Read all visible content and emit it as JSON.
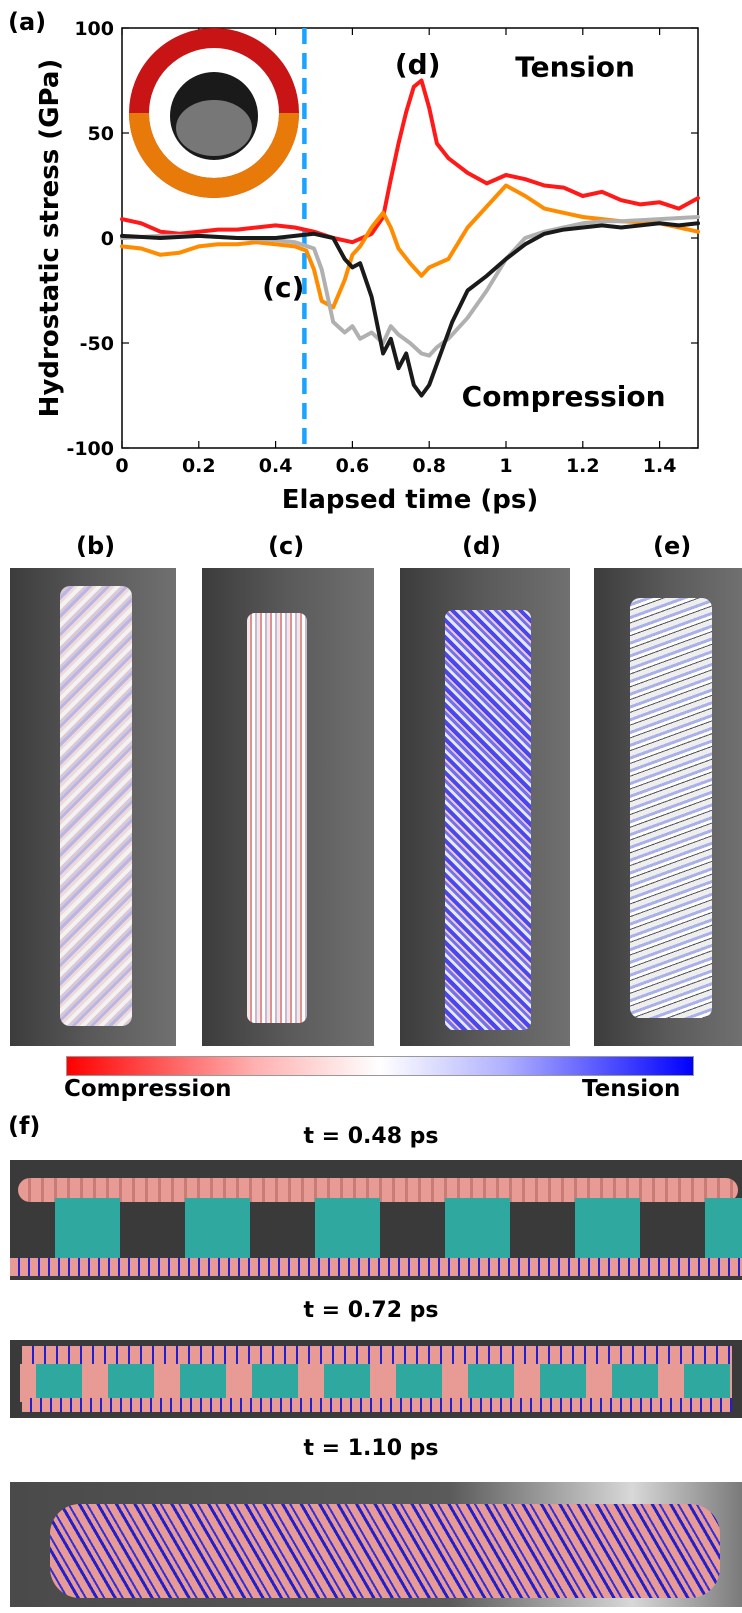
{
  "panel_labels": {
    "a": "(a)",
    "b": "(b)",
    "c": "(c)",
    "d": "(d)",
    "e": "(e)",
    "f": "(f)"
  },
  "chart_data": {
    "type": "line",
    "title": "",
    "xlabel": "Elapsed time (ps)",
    "ylabel": "Hydrostatic stress (GPa)",
    "xlim": [
      0,
      1.5
    ],
    "ylim": [
      -100,
      100
    ],
    "xticks": [
      0,
      0.2,
      0.4,
      0.6,
      0.8,
      1,
      1.2,
      1.4
    ],
    "xtick_labels": [
      "0",
      "0.2",
      "0.4",
      "0.6",
      "0.8",
      "1",
      "1.2",
      "1.4"
    ],
    "yticks": [
      -100,
      -50,
      0,
      50,
      100
    ],
    "ytick_labels": [
      "-100",
      "-50",
      "0",
      "50",
      "100"
    ],
    "grid": false,
    "vline": {
      "x": 0.475,
      "color": "#1aa3ff",
      "style": "dashed"
    },
    "annotations": [
      {
        "text": "(d)",
        "x": 0.77,
        "y": 78
      },
      {
        "text": "Tension",
        "x": 1.18,
        "y": 77
      },
      {
        "text": "(c)",
        "x": 0.42,
        "y": -28
      },
      {
        "text": "Compression",
        "x": 1.15,
        "y": -80
      }
    ],
    "series": [
      {
        "color": "#ff1a1a",
        "x": [
          0,
          0.05,
          0.1,
          0.15,
          0.2,
          0.25,
          0.3,
          0.35,
          0.4,
          0.45,
          0.5,
          0.55,
          0.6,
          0.65,
          0.68,
          0.7,
          0.72,
          0.74,
          0.76,
          0.78,
          0.8,
          0.82,
          0.85,
          0.9,
          0.95,
          1.0,
          1.05,
          1.1,
          1.15,
          1.2,
          1.25,
          1.3,
          1.35,
          1.4,
          1.45,
          1.5
        ],
        "y": [
          9,
          7,
          3,
          2,
          3,
          4,
          4,
          5,
          6,
          5,
          3,
          0,
          -2,
          2,
          10,
          28,
          45,
          60,
          72,
          75,
          62,
          45,
          38,
          31,
          26,
          30,
          28,
          25,
          24,
          20,
          22,
          18,
          16,
          17,
          14,
          19
        ]
      },
      {
        "color": "#ff8c00",
        "x": [
          0,
          0.05,
          0.1,
          0.15,
          0.2,
          0.25,
          0.3,
          0.35,
          0.4,
          0.45,
          0.48,
          0.5,
          0.52,
          0.55,
          0.58,
          0.6,
          0.62,
          0.65,
          0.68,
          0.7,
          0.72,
          0.75,
          0.78,
          0.8,
          0.85,
          0.9,
          0.95,
          1.0,
          1.05,
          1.1,
          1.15,
          1.2,
          1.3,
          1.4,
          1.5
        ],
        "y": [
          -4,
          -5,
          -8,
          -7,
          -4,
          -3,
          -3,
          -2,
          -3,
          -4,
          -6,
          -15,
          -30,
          -33,
          -20,
          -8,
          -4,
          5,
          12,
          5,
          -5,
          -12,
          -18,
          -14,
          -10,
          5,
          15,
          25,
          20,
          14,
          12,
          10,
          8,
          7,
          3
        ]
      },
      {
        "color": "#b0b0b0",
        "x": [
          0,
          0.1,
          0.2,
          0.3,
          0.4,
          0.45,
          0.5,
          0.52,
          0.55,
          0.58,
          0.6,
          0.62,
          0.65,
          0.68,
          0.7,
          0.72,
          0.75,
          0.78,
          0.8,
          0.82,
          0.85,
          0.9,
          0.95,
          1.0,
          1.05,
          1.1,
          1.15,
          1.2,
          1.25,
          1.3,
          1.4,
          1.5
        ],
        "y": [
          0,
          1,
          1,
          0,
          -1,
          -2,
          -5,
          -15,
          -40,
          -45,
          -42,
          -48,
          -45,
          -50,
          -42,
          -46,
          -50,
          -55,
          -56,
          -52,
          -48,
          -38,
          -25,
          -10,
          0,
          3,
          5,
          7,
          8,
          8,
          9,
          10
        ]
      },
      {
        "color": "#1a1a1a",
        "x": [
          0,
          0.1,
          0.2,
          0.3,
          0.4,
          0.45,
          0.5,
          0.55,
          0.58,
          0.6,
          0.62,
          0.65,
          0.68,
          0.7,
          0.72,
          0.74,
          0.76,
          0.78,
          0.8,
          0.83,
          0.86,
          0.9,
          0.95,
          1.0,
          1.05,
          1.1,
          1.15,
          1.2,
          1.25,
          1.3,
          1.35,
          1.4,
          1.45,
          1.5
        ],
        "y": [
          1,
          0,
          1,
          0,
          0,
          1,
          2,
          0,
          -10,
          -14,
          -12,
          -28,
          -55,
          -48,
          -62,
          -55,
          -70,
          -75,
          -70,
          -55,
          -40,
          -25,
          -18,
          -10,
          -3,
          2,
          4,
          5,
          6,
          5,
          6,
          7,
          6,
          7
        ]
      }
    ]
  },
  "colorbar": {
    "left_label": "Compression",
    "right_label": "Tension"
  },
  "time_labels": [
    "t = 0.48 ps",
    "t = 0.72 ps",
    "t = 1.10 ps"
  ]
}
